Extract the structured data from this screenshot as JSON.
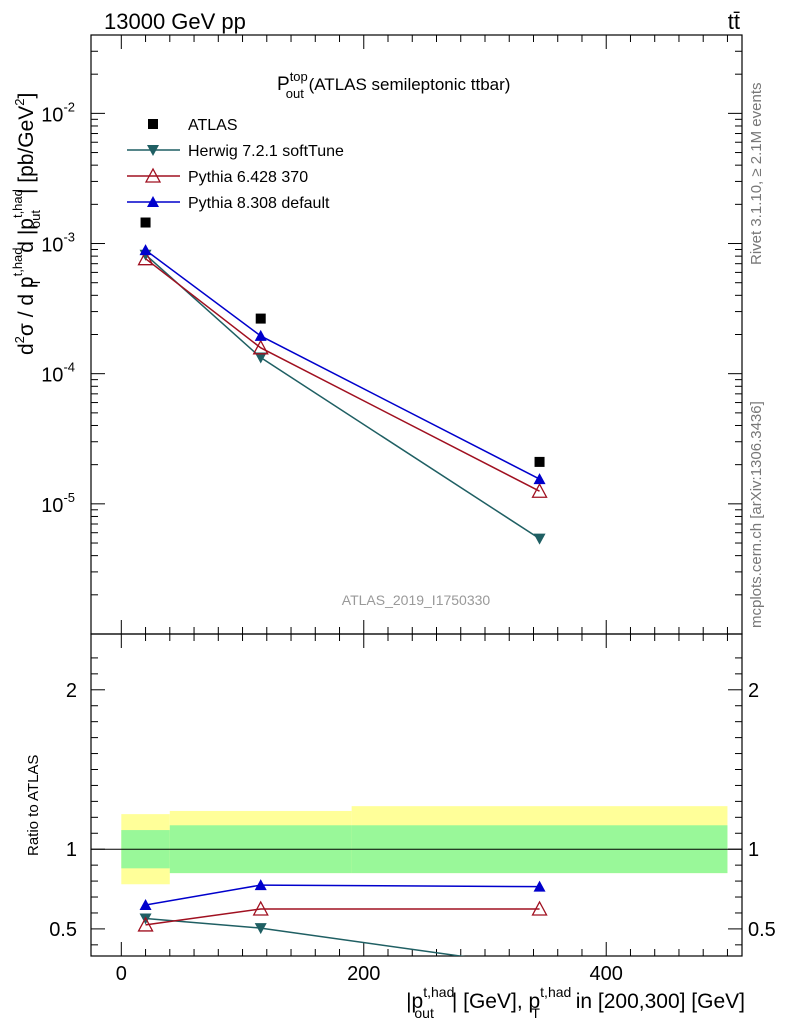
{
  "header": {
    "left": "13000 GeV pp",
    "right": "tt̄"
  },
  "chart_data": {
    "type": "line",
    "title_main": "P",
    "title_sup": "top",
    "title_sub": "out",
    "title_rest": " (ATLAS semileptonic ttbar)",
    "analysis_id": "ATLAS_2019_I1750330",
    "side_text_top": "Rivet 3.1.10, ≥ 2.1M events",
    "side_text_bottom": "mcplots.cern.ch [arXiv:1306.3436]",
    "xlabel_parts": [
      "|p",
      "t,had",
      "out",
      "| [GeV], p",
      "t,had",
      "T",
      " in [200,300] [GeV]"
    ],
    "ylabel_top_parts": [
      "d",
      "2",
      "σ / d p",
      "t,had",
      "T",
      " d |p",
      "t,had",
      "out",
      "| [pb/GeV",
      "2",
      "]"
    ],
    "ylabel_ratio": "Ratio to ATLAS",
    "x": [
      20,
      115,
      345
    ],
    "xlim": [
      -25,
      512
    ],
    "upper": {
      "scale": "log",
      "ylim": [
        1e-06,
        0.04
      ],
      "ytick_labels": [
        {
          "base": "10",
          "exp": "-5",
          "value": 1e-05
        },
        {
          "base": "10",
          "exp": "-4",
          "value": 0.0001
        },
        {
          "base": "10",
          "exp": "-3",
          "value": 0.001
        },
        {
          "base": "10",
          "exp": "-2",
          "value": 0.01
        }
      ]
    },
    "lower": {
      "ylim": [
        0.33,
        2.35
      ],
      "yticks": [
        0.5,
        1,
        2
      ],
      "ytick_labels": [
        "0.5",
        "1",
        "2"
      ],
      "band_inner": [
        {
          "x0": 0,
          "x1": 40,
          "lo": 0.88,
          "hi": 1.12
        },
        {
          "x0": 40,
          "x1": 190,
          "lo": 0.85,
          "hi": 1.15
        },
        {
          "x0": 190,
          "x1": 500,
          "lo": 0.85,
          "hi": 1.15
        }
      ],
      "band_outer": [
        {
          "x0": 0,
          "x1": 40,
          "lo": 0.78,
          "hi": 1.22
        },
        {
          "x0": 40,
          "x1": 190,
          "lo": 0.85,
          "hi": 1.24
        },
        {
          "x0": 190,
          "x1": 500,
          "lo": 0.85,
          "hi": 1.27
        }
      ]
    },
    "xtick_labels": [
      {
        "label": "0",
        "value": 0
      },
      {
        "label": "200",
        "value": 200
      },
      {
        "label": "400",
        "value": 400
      }
    ],
    "series": [
      {
        "name": "ATLAS",
        "color": "#000000",
        "marker": "square",
        "values": [
          0.00145,
          0.000265,
          2.1e-05
        ],
        "ratio": [
          1,
          1,
          1
        ]
      },
      {
        "name": "Herwig 7.2.1 softTune",
        "color": "#1f5f63",
        "marker": "triangle-down",
        "values": [
          0.00082,
          0.000133,
          5.4e-06
        ],
        "ratio": [
          0.565,
          0.505,
          0.26
        ]
      },
      {
        "name": "Pythia 6.428 370",
        "color": "#a01020",
        "marker": "triangle-open",
        "values": [
          0.000765,
          0.000158,
          1.25e-05
        ],
        "ratio": [
          0.525,
          0.625,
          0.625
        ]
      },
      {
        "name": "Pythia 8.308 default",
        "color": "#0000cc",
        "marker": "triangle-up",
        "values": [
          0.00089,
          0.000195,
          1.55e-05
        ],
        "ratio": [
          0.65,
          0.775,
          0.765
        ]
      }
    ],
    "colors": {
      "band_inner": "#99f899",
      "band_outer": "#ffff99"
    }
  }
}
